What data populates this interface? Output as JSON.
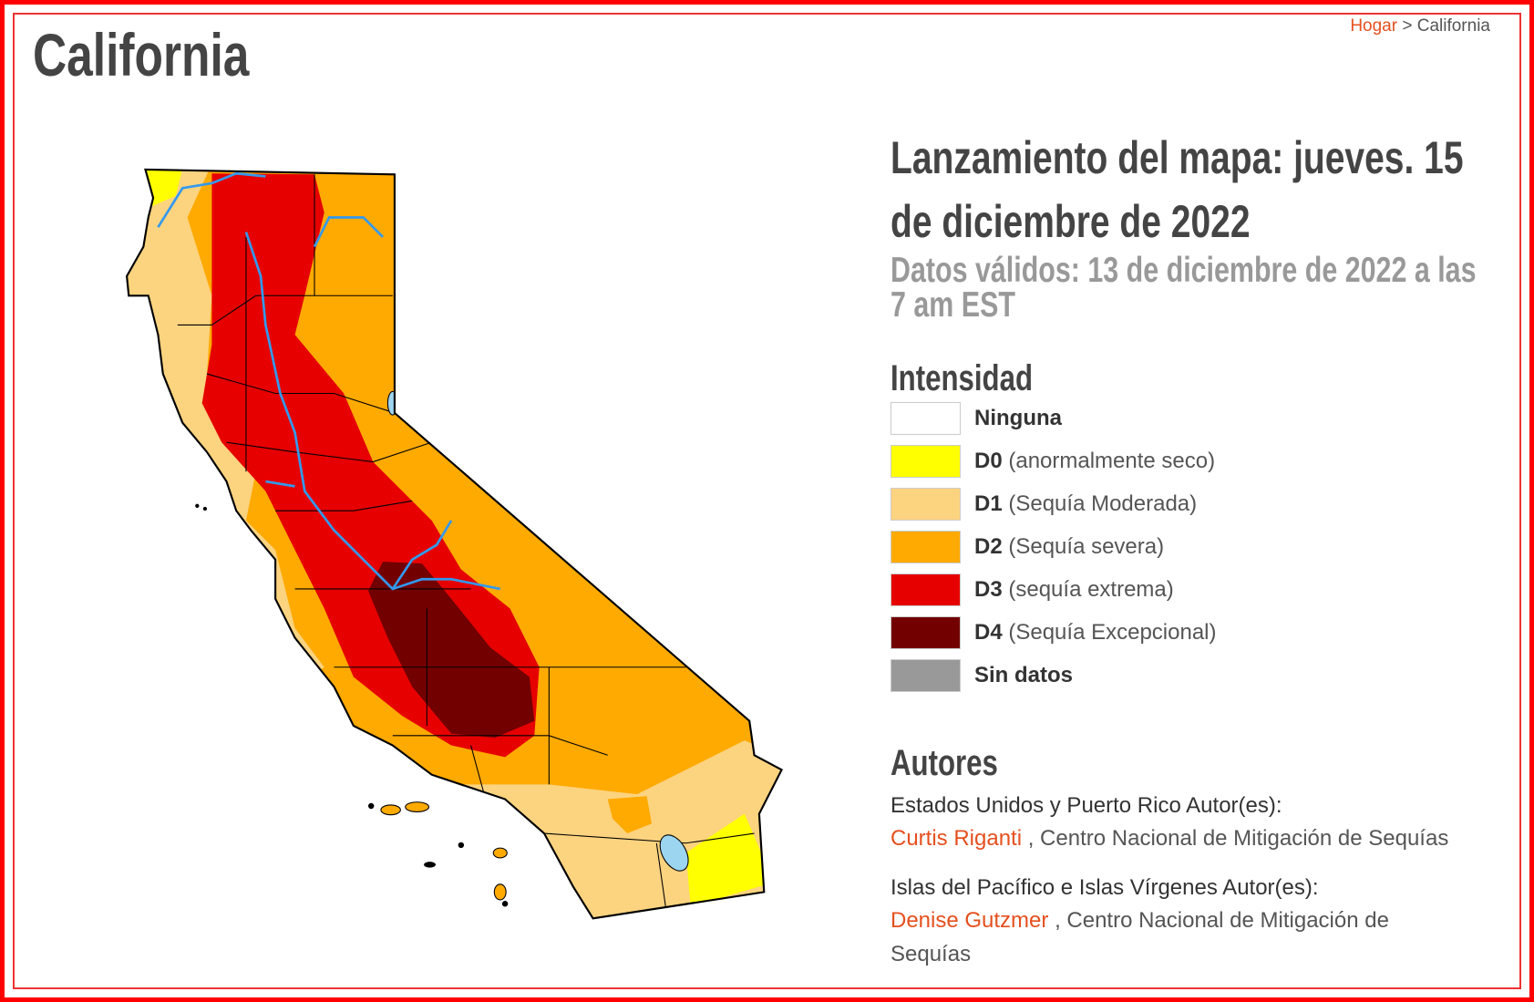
{
  "header": {
    "title": "California",
    "breadcrumb": {
      "home": "Hogar",
      "separator": ">",
      "current": "California"
    }
  },
  "release": {
    "title": "Lanzamiento del mapa: jueves. 15 de diciembre de 2022",
    "valid": "Datos válidos: 13 de diciembre de 2022 a las 7 am EST"
  },
  "legend": {
    "title": "Intensidad",
    "items": [
      {
        "code": "Ninguna",
        "label": "",
        "color": "#ffffff"
      },
      {
        "code": "D0",
        "label": "(anormalmente seco)",
        "color": "#ffff00"
      },
      {
        "code": "D1",
        "label": "(Sequía Moderada)",
        "color": "#fcd37f"
      },
      {
        "code": "D2",
        "label": "(Sequía severa)",
        "color": "#ffaa00"
      },
      {
        "code": "D3",
        "label": "(sequía extrema)",
        "color": "#e60000"
      },
      {
        "code": "D4",
        "label": "(Sequía Excepcional)",
        "color": "#730000"
      },
      {
        "code": "Sin datos",
        "label": "",
        "color": "#999999"
      }
    ]
  },
  "authors": {
    "title": "Autores",
    "groups": [
      {
        "heading": "Estados Unidos y Puerto Rico Autor(es):",
        "name": "Curtis Riganti",
        "org": ", Centro Nacional de Mitigación de Sequías"
      },
      {
        "heading": "Islas del Pacífico e Islas Vírgenes Autor(es):",
        "name": "Denise Gutzmer",
        "org": ", Centro Nacional de Mitigación de Sequías"
      }
    ]
  }
}
